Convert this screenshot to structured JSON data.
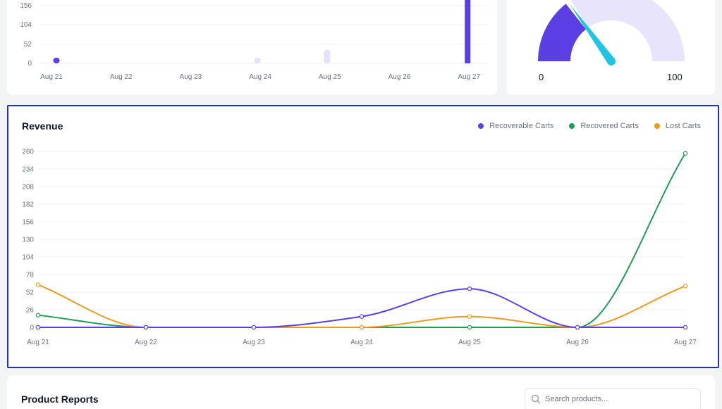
{
  "top_chart": {
    "y_ticks": [
      "156",
      "104",
      "52",
      "0"
    ],
    "x_ticks": [
      "Aug 21",
      "Aug 22",
      "Aug 23",
      "Aug 24",
      "Aug 25",
      "Aug 26",
      "Aug 27"
    ],
    "bars_visible_fraction": [
      0.06,
      0,
      0,
      0.04,
      0.19,
      0,
      1
    ]
  },
  "gauge": {
    "min_label": "0",
    "max_label": "100",
    "value_fraction": 0.3,
    "colors": {
      "fill": "#5b3fe4",
      "track": "#e7e4fb",
      "needle": "#22c3e6"
    }
  },
  "revenue": {
    "title": "Revenue",
    "legend": [
      {
        "label": "Recoverable Carts",
        "color": "#5b3fe4"
      },
      {
        "label": "Recovered Carts",
        "color": "#1f9d55"
      },
      {
        "label": "Lost Carts",
        "color": "#ef9a1c"
      }
    ]
  },
  "chart_data": {
    "type": "line",
    "categories": [
      "Aug 21",
      "Aug 22",
      "Aug 23",
      "Aug 24",
      "Aug 25",
      "Aug 26",
      "Aug 27"
    ],
    "ylim": [
      0,
      260
    ],
    "y_ticks": [
      0,
      26,
      52,
      78,
      104,
      130,
      156,
      182,
      208,
      234,
      260
    ],
    "grid": true,
    "legend_position": "top-right",
    "series": [
      {
        "name": "Recoverable Carts",
        "color": "#5b3fe4",
        "values": [
          0,
          0,
          0,
          16,
          57,
          0,
          0
        ]
      },
      {
        "name": "Recovered Carts",
        "color": "#1f9d55",
        "values": [
          18,
          0,
          0,
          0,
          0,
          0,
          257
        ]
      },
      {
        "name": "Lost Carts",
        "color": "#ef9a1c",
        "values": [
          63,
          0,
          0,
          0,
          16,
          0,
          61
        ]
      }
    ]
  },
  "product_reports": {
    "title": "Product Reports",
    "search_placeholder": "Search products..."
  }
}
